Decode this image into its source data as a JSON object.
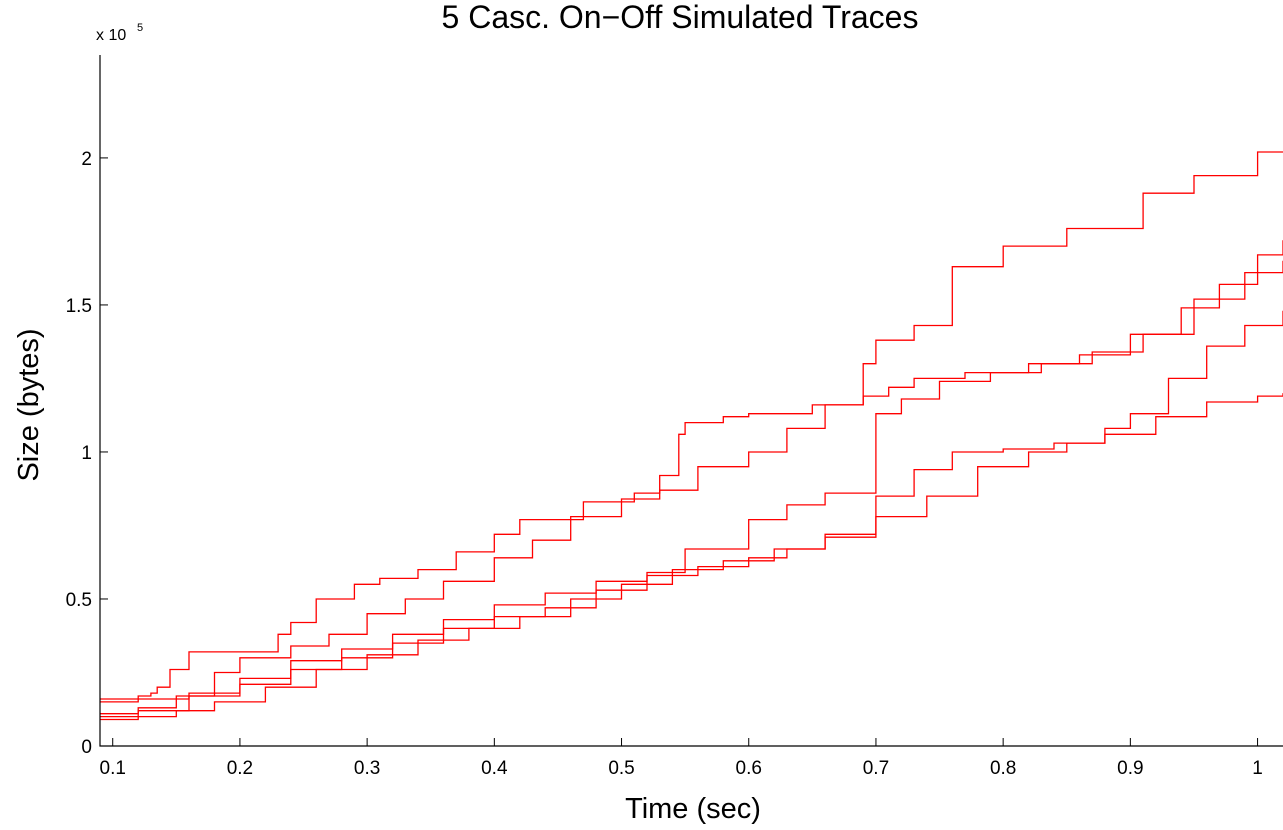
{
  "chart_data": {
    "type": "line",
    "title": "5 Casc. On−Off Simulated Traces",
    "xlabel": "Time (sec)",
    "ylabel": "Size (bytes)",
    "y_multiplier_label": "x 10",
    "y_multiplier_exponent": "5",
    "xlim": [
      0.09,
      1.02
    ],
    "ylim": [
      0,
      2.35
    ],
    "y_units_scale": 100000,
    "x_ticks": [
      0.1,
      0.2,
      0.3,
      0.4,
      0.5,
      0.6,
      0.7,
      0.8,
      0.9,
      1
    ],
    "x_tick_labels": [
      "0.1",
      "0.2",
      "0.3",
      "0.4",
      "0.5",
      "0.6",
      "0.7",
      "0.8",
      "0.9",
      "1"
    ],
    "y_ticks": [
      0,
      0.5,
      1,
      1.5,
      2
    ],
    "y_tick_labels": [
      "0",
      "0.5",
      "1",
      "1.5",
      "2"
    ],
    "grid": false,
    "legend": "none",
    "line_color": "#ff0000",
    "series": [
      {
        "x": [
          0.09,
          0.12,
          0.13,
          0.135,
          0.145,
          0.16,
          0.2,
          0.23,
          0.24,
          0.26,
          0.29,
          0.31,
          0.34,
          0.37,
          0.4,
          0.42,
          0.47,
          0.51,
          0.53,
          0.545,
          0.55,
          0.58,
          0.6,
          0.65,
          0.69,
          0.7,
          0.73,
          0.76,
          0.8,
          0.85,
          0.91,
          0.95,
          1.0,
          1.02
        ],
        "y": [
          0.16,
          0.17,
          0.18,
          0.2,
          0.26,
          0.32,
          0.32,
          0.38,
          0.42,
          0.5,
          0.55,
          0.57,
          0.6,
          0.66,
          0.72,
          0.77,
          0.83,
          0.86,
          0.92,
          1.06,
          1.1,
          1.12,
          1.13,
          1.16,
          1.3,
          1.38,
          1.43,
          1.63,
          1.7,
          1.76,
          1.88,
          1.94,
          2.02,
          2.02
        ]
      },
      {
        "x": [
          0.09,
          0.12,
          0.15,
          0.18,
          0.2,
          0.24,
          0.27,
          0.3,
          0.33,
          0.36,
          0.4,
          0.43,
          0.46,
          0.5,
          0.53,
          0.56,
          0.6,
          0.63,
          0.66,
          0.69,
          0.71,
          0.73,
          0.77,
          0.82,
          0.87,
          0.91,
          0.95,
          0.99,
          1.02
        ],
        "y": [
          0.11,
          0.13,
          0.17,
          0.25,
          0.3,
          0.34,
          0.38,
          0.45,
          0.5,
          0.56,
          0.64,
          0.7,
          0.78,
          0.84,
          0.87,
          0.95,
          1.0,
          1.08,
          1.16,
          1.19,
          1.22,
          1.25,
          1.27,
          1.3,
          1.34,
          1.4,
          1.52,
          1.61,
          1.65
        ]
      },
      {
        "x": [
          0.09,
          0.12,
          0.16,
          0.2,
          0.24,
          0.28,
          0.32,
          0.36,
          0.4,
          0.44,
          0.48,
          0.52,
          0.55,
          0.6,
          0.63,
          0.66,
          0.7,
          0.72,
          0.75,
          0.79,
          0.83,
          0.86,
          0.9,
          0.94,
          0.97,
          1.0,
          1.02
        ],
        "y": [
          0.1,
          0.12,
          0.18,
          0.23,
          0.29,
          0.33,
          0.38,
          0.43,
          0.48,
          0.52,
          0.56,
          0.59,
          0.67,
          0.77,
          0.82,
          0.86,
          1.13,
          1.18,
          1.24,
          1.27,
          1.3,
          1.33,
          1.4,
          1.49,
          1.57,
          1.67,
          1.72
        ]
      },
      {
        "x": [
          0.09,
          0.12,
          0.15,
          0.18,
          0.22,
          0.26,
          0.3,
          0.34,
          0.38,
          0.42,
          0.46,
          0.5,
          0.54,
          0.58,
          0.62,
          0.66,
          0.7,
          0.74,
          0.78,
          0.82,
          0.85,
          0.88,
          0.9,
          0.93,
          0.96,
          0.99,
          1.02
        ],
        "y": [
          0.09,
          0.1,
          0.12,
          0.15,
          0.2,
          0.26,
          0.31,
          0.36,
          0.4,
          0.44,
          0.5,
          0.55,
          0.6,
          0.63,
          0.67,
          0.71,
          0.78,
          0.85,
          0.95,
          1.0,
          1.03,
          1.08,
          1.13,
          1.25,
          1.36,
          1.43,
          1.48
        ]
      },
      {
        "x": [
          0.09,
          0.12,
          0.16,
          0.2,
          0.24,
          0.28,
          0.32,
          0.36,
          0.4,
          0.44,
          0.48,
          0.52,
          0.56,
          0.6,
          0.63,
          0.66,
          0.7,
          0.73,
          0.76,
          0.8,
          0.84,
          0.88,
          0.92,
          0.96,
          1.0,
          1.02
        ],
        "y": [
          0.15,
          0.16,
          0.17,
          0.21,
          0.26,
          0.3,
          0.35,
          0.4,
          0.44,
          0.47,
          0.53,
          0.58,
          0.61,
          0.64,
          0.67,
          0.72,
          0.85,
          0.94,
          1.0,
          1.01,
          1.03,
          1.06,
          1.12,
          1.17,
          1.19,
          1.2
        ]
      }
    ]
  }
}
